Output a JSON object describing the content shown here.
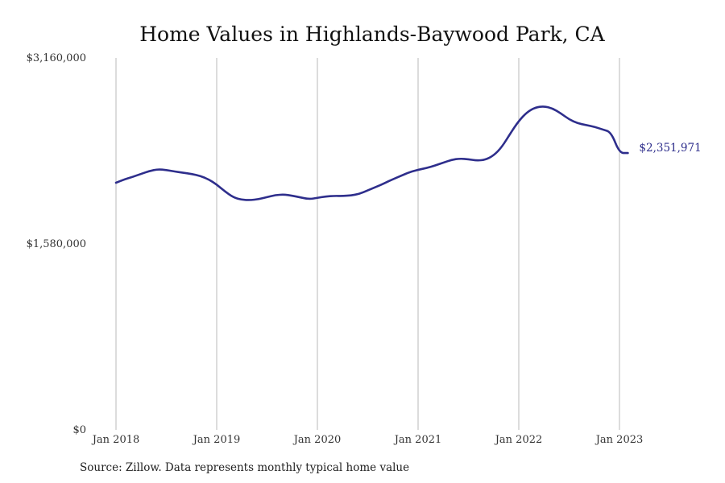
{
  "chart_data": {
    "type": "line",
    "title": "Home Values in Highlands-Baywood Park, CA",
    "xlabel": "",
    "ylabel": "",
    "x_tick_labels": [
      "Jan 2018",
      "Jan 2019",
      "Jan 2020",
      "Jan 2021",
      "Jan 2022",
      "Jan 2023"
    ],
    "y_tick_labels": [
      "$0",
      "$1,580,000",
      "$3,160,000"
    ],
    "y_ticks": [
      0,
      1580000,
      3160000
    ],
    "ylim": [
      0,
      3160000
    ],
    "xlim": [
      "2018-01",
      "2023-01"
    ],
    "grid": "vertical",
    "legend": "none",
    "series": [
      {
        "color": "#2e2e8c",
        "x": [
          "2018-01",
          "2018-02",
          "2018-03",
          "2018-04",
          "2018-05",
          "2018-06",
          "2018-07",
          "2018-08",
          "2018-09",
          "2018-10",
          "2018-11",
          "2018-12",
          "2019-01",
          "2019-02",
          "2019-03",
          "2019-04",
          "2019-05",
          "2019-06",
          "2019-07",
          "2019-08",
          "2019-09",
          "2019-10",
          "2019-11",
          "2019-12",
          "2020-01",
          "2020-02",
          "2020-03",
          "2020-04",
          "2020-05",
          "2020-06",
          "2020-07",
          "2020-08",
          "2020-09",
          "2020-10",
          "2020-11",
          "2020-12",
          "2021-01",
          "2021-02",
          "2021-03",
          "2021-04",
          "2021-05",
          "2021-06",
          "2021-07",
          "2021-08",
          "2021-09",
          "2021-10",
          "2021-11",
          "2021-12",
          "2022-01",
          "2022-02",
          "2022-03",
          "2022-04",
          "2022-05",
          "2022-06",
          "2022-07",
          "2022-08",
          "2022-09",
          "2022-10",
          "2022-11",
          "2022-12",
          "2023-01",
          "2023-02"
        ],
        "values": [
          2100000,
          2128000,
          2150000,
          2175000,
          2200000,
          2215000,
          2208000,
          2195000,
          2185000,
          2175000,
          2158000,
          2130000,
          2085000,
          2025000,
          1975000,
          1955000,
          1952000,
          1960000,
          1978000,
          1995000,
          2000000,
          1990000,
          1975000,
          1960000,
          1972000,
          1983000,
          1988000,
          1987000,
          1992000,
          2005000,
          2035000,
          2065000,
          2095000,
          2130000,
          2160000,
          2190000,
          2210000,
          2225000,
          2245000,
          2270000,
          2295000,
          2305000,
          2300000,
          2288000,
          2295000,
          2330000,
          2405000,
          2520000,
          2625000,
          2700000,
          2740000,
          2750000,
          2732000,
          2690000,
          2638000,
          2605000,
          2590000,
          2575000,
          2552000,
          2530000,
          2351971,
          2351971
        ],
        "end_value": 2351971,
        "end_label": "$2,351,971"
      }
    ],
    "source": "Source: Zillow. Data represents monthly typical home value"
  }
}
